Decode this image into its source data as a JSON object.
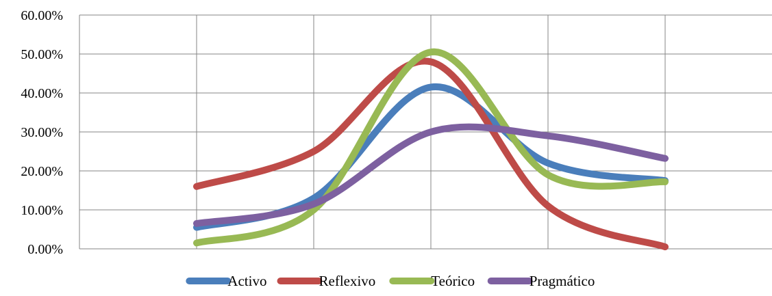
{
  "chart_data": {
    "type": "line",
    "smooth": true,
    "title": "",
    "xlabel": "",
    "ylabel": "",
    "categories": [
      "",
      "",
      "",
      "",
      ""
    ],
    "ylim": [
      0,
      0.6
    ],
    "yticks": [
      0,
      0.1,
      0.2,
      0.3,
      0.4,
      0.5,
      0.6
    ],
    "ytick_labels": [
      "0.00%",
      "10.00%",
      "20.00%",
      "30.00%",
      "40.00%",
      "50.00%",
      "60.00%"
    ],
    "grid": true,
    "legend_position": "bottom",
    "series": [
      {
        "name": "Activo",
        "color": "#4a7ebb",
        "values": [
          0.055,
          0.13,
          0.415,
          0.22,
          0.175
        ]
      },
      {
        "name": "Reflexivo",
        "color": "#be4b48",
        "values": [
          0.16,
          0.25,
          0.48,
          0.11,
          0.005
        ]
      },
      {
        "name": "Teórico",
        "color": "#98b954",
        "values": [
          0.015,
          0.1,
          0.505,
          0.19,
          0.172
        ]
      },
      {
        "name": "Pragmático",
        "color": "#7d60a0",
        "values": [
          0.065,
          0.115,
          0.3,
          0.29,
          0.232
        ]
      }
    ]
  }
}
